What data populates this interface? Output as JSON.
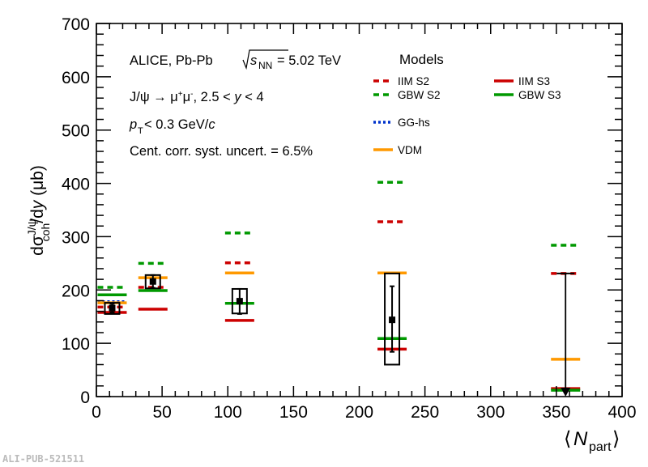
{
  "chart_data": {
    "type": "scatter",
    "title": "",
    "xlabel": "⟨N_part⟩",
    "xlabel_main": "N",
    "xlabel_sub": "part",
    "ylabel": "dσ^{J/ψ}_{coh}/dy (μb)",
    "ylabel_parts": {
      "d1": "dσ",
      "sup": "J/ψ",
      "sub": "coh",
      "rest": "/d",
      "y": "y",
      "unit": " (μb)"
    },
    "xlim": [
      0,
      400
    ],
    "ylim": [
      0,
      700
    ],
    "xticks": [
      0,
      50,
      100,
      150,
      200,
      250,
      300,
      350,
      400
    ],
    "yticks": [
      0,
      100,
      200,
      300,
      400,
      500,
      600,
      700
    ],
    "grid": false,
    "annotations": {
      "line1_a": "ALICE, Pb-Pb ",
      "line1_s": "s",
      "line1_nn": "NN",
      "line1_b": " = 5.02 TeV",
      "line2_a": "J/ψ → μ",
      "line2_b": ", 2.5 < ",
      "line2_y": "y",
      "line2_c": " < 4",
      "line3_p": "p",
      "line3_T": "T",
      "line3_b": " < 0.3 GeV/",
      "line3_c": "c",
      "line4": "Cent. corr. syst. uncert. = 6.5%"
    },
    "legend": {
      "title": "Models",
      "placement": "top-right"
    },
    "data": {
      "x": [
        12,
        43,
        109,
        225
      ],
      "y": [
        166,
        216,
        179,
        144
      ],
      "stat_low": [
        158,
        204,
        155,
        84
      ],
      "stat_high": [
        174,
        228,
        202,
        207
      ],
      "syst_low": [
        155,
        203,
        156,
        60
      ],
      "syst_high": [
        176,
        228,
        202,
        231
      ],
      "upper_limit": {
        "x": 357,
        "y": 231
      }
    },
    "model_x": [
      12,
      43,
      109,
      225,
      357
    ],
    "series": [
      {
        "name": "IIM S2",
        "color": "#cc0000",
        "style": "dashed",
        "values": [
          168,
          205,
          251,
          328,
          231
        ]
      },
      {
        "name": "GBW S2",
        "color": "#009900",
        "style": "dashed",
        "values": [
          205,
          250,
          307,
          402,
          284
        ]
      },
      {
        "name": "IIM S3",
        "color": "#cc0000",
        "style": "solid",
        "values": [
          158,
          164,
          143,
          89,
          15
        ]
      },
      {
        "name": "GBW S3",
        "color": "#009900",
        "style": "solid",
        "values": [
          191,
          199,
          175,
          109,
          12
        ]
      },
      {
        "name": "GG-hs",
        "color": "#0033cc",
        "style": "dotted",
        "values": [
          178,
          null,
          null,
          null,
          null
        ]
      },
      {
        "name": "VDM",
        "color": "#ff9900",
        "style": "solid",
        "values": [
          176,
          223,
          232,
          232,
          70
        ]
      }
    ]
  },
  "watermark": "ALI-PUB-521511"
}
